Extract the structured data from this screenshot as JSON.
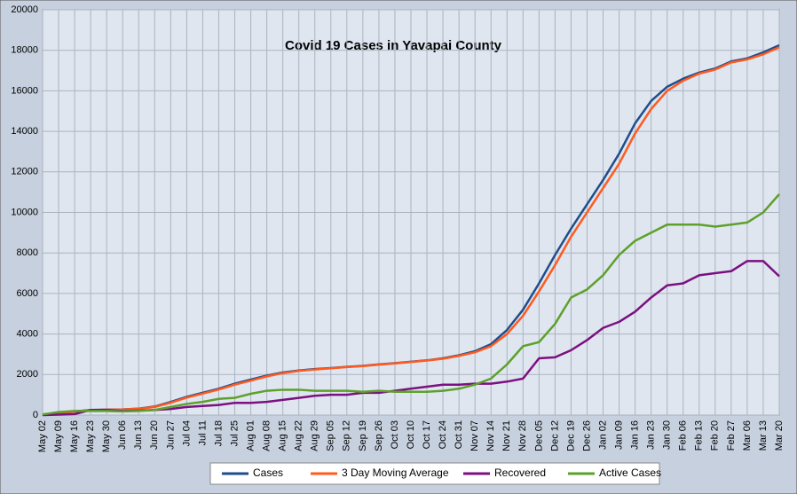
{
  "chart_data": {
    "type": "line",
    "title": "Covid 19 Cases in Yavapai County",
    "categories": [
      "May 02",
      "May 09",
      "May 16",
      "May 23",
      "May 30",
      "Jun 06",
      "Jun 13",
      "Jun 20",
      "Jun 27",
      "Jul 04",
      "Jul 11",
      "Jul 18",
      "Jul 25",
      "Aug 01",
      "Aug 08",
      "Aug 15",
      "Aug 22",
      "Aug 29",
      "Sep 05",
      "Sep 12",
      "Sep 19",
      "Sep 26",
      "Oct 03",
      "Oct 10",
      "Oct 17",
      "Oct 24",
      "Oct 31",
      "Nov 07",
      "Nov 14",
      "Nov 21",
      "Nov 28",
      "Dec 05",
      "Dec 12",
      "Dec 19",
      "Dec 26",
      "Jan 02",
      "Jan 09",
      "Jan 16",
      "Jan 23",
      "Jan 30",
      "Feb 06",
      "Feb 13",
      "Feb 20",
      "Feb 27",
      "Mar 06",
      "Mar 13",
      "Mar 20"
    ],
    "series": [
      {
        "name": "Cases",
        "color": "#1f4e8c",
        "values": [
          30,
          100,
          180,
          250,
          270,
          280,
          320,
          420,
          650,
          900,
          1100,
          1300,
          1550,
          1750,
          1950,
          2100,
          2200,
          2270,
          2320,
          2380,
          2430,
          2500,
          2560,
          2630,
          2700,
          2800,
          2950,
          3150,
          3500,
          4200,
          5200,
          6500,
          7900,
          9200,
          10400,
          11600,
          12900,
          14400,
          15500,
          16200,
          16600,
          16900,
          17100,
          17450,
          17600,
          17900,
          18250
        ]
      },
      {
        "name": "3 Day Moving Average",
        "color": "#ff5a1f",
        "values": [
          20,
          90,
          170,
          240,
          265,
          275,
          310,
          400,
          610,
          860,
          1060,
          1260,
          1500,
          1700,
          1910,
          2070,
          2180,
          2250,
          2310,
          2370,
          2420,
          2490,
          2550,
          2620,
          2690,
          2780,
          2920,
          3100,
          3400,
          4000,
          4900,
          6100,
          7400,
          8800,
          10000,
          11200,
          12400,
          13900,
          15100,
          16000,
          16500,
          16850,
          17050,
          17400,
          17550,
          17800,
          18150
        ]
      },
      {
        "name": "Recovered",
        "color": "#7b1080",
        "values": [
          0,
          20,
          50,
          250,
          250,
          200,
          220,
          250,
          300,
          400,
          450,
          500,
          600,
          600,
          650,
          750,
          850,
          950,
          1000,
          1000,
          1100,
          1100,
          1200,
          1300,
          1400,
          1500,
          1500,
          1550,
          1550,
          1650,
          1800,
          2800,
          2850,
          3200,
          3700,
          4300,
          4600,
          5100,
          5800,
          6400,
          6500,
          6900,
          7000,
          7100,
          7600,
          7600,
          6850
        ]
      },
      {
        "name": "Active Cases",
        "color": "#5ea02c",
        "values": [
          30,
          150,
          200,
          200,
          200,
          180,
          200,
          250,
          400,
          550,
          650,
          800,
          850,
          1050,
          1200,
          1250,
          1250,
          1200,
          1200,
          1200,
          1150,
          1200,
          1150,
          1150,
          1150,
          1200,
          1300,
          1500,
          1800,
          2500,
          3400,
          3600,
          4500,
          5800,
          6200,
          6900,
          7900,
          8600,
          9000,
          9400,
          9400,
          9400,
          9300,
          9400,
          9500,
          10000,
          10900
        ]
      }
    ],
    "ylim": [
      0,
      20000
    ],
    "yticks": [
      0,
      2000,
      4000,
      6000,
      8000,
      10000,
      12000,
      14000,
      16000,
      18000,
      20000
    ],
    "grid": true,
    "legend": "bottom"
  }
}
